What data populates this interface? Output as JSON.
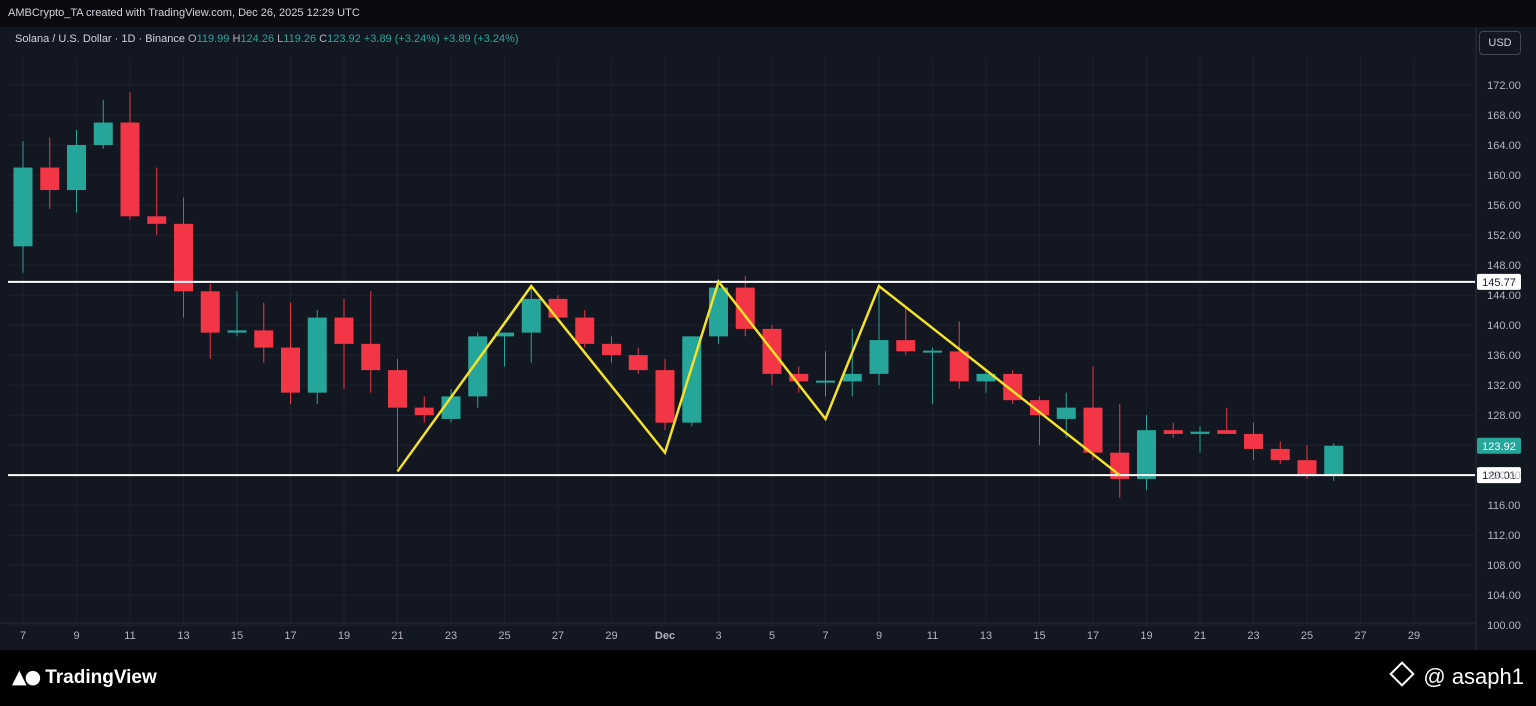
{
  "header": {
    "created_by": "AMBCrypto_TA created with TradingView.com, Dec 26, 2025 12:29 UTC"
  },
  "legend": {
    "symbol": "Solana / U.S. Dollar · 1D · Binance",
    "open_label": "O",
    "open": "119.99",
    "high_label": "H",
    "high": "124.26",
    "low_label": "L",
    "low": "119.26",
    "close_label": "C",
    "close": "123.92",
    "change": "+3.89 (+3.24%)",
    "change2": "+3.89 (+3.24%)"
  },
  "currency_button": "USD",
  "footer": {
    "logo_text": "TradingView",
    "watermark": "@ asaph1"
  },
  "colors": {
    "up": "#26a69a",
    "down": "#f23645",
    "background": "#131722",
    "pattern": "#f5e02a",
    "level": "#ffffff"
  },
  "chart_data": {
    "type": "candlestick",
    "x_tick_labels": [
      "7",
      "9",
      "11",
      "13",
      "15",
      "17",
      "19",
      "21",
      "23",
      "25",
      "27",
      "29",
      "Dec",
      "3",
      "5",
      "7",
      "9",
      "11",
      "13",
      "15",
      "17",
      "19",
      "21",
      "23",
      "25",
      "27",
      "29"
    ],
    "y_ticks": [
      "100.00",
      "104.00",
      "108.00",
      "112.00",
      "116.00",
      "120.00",
      "124.00",
      "128.00",
      "132.00",
      "136.00",
      "140.00",
      "144.00",
      "148.00",
      "152.00",
      "156.00",
      "160.00",
      "164.00",
      "168.00",
      "172.00"
    ],
    "ylim": [
      96.5,
      176
    ],
    "day_range": [
      0,
      52
    ],
    "candles": [
      {
        "o": 150.5,
        "h": 164.5,
        "l": 147.0,
        "c": 161.0
      },
      {
        "o": 161.0,
        "h": 165.0,
        "l": 155.5,
        "c": 158.0
      },
      {
        "o": 158.0,
        "h": 166.0,
        "l": 155.0,
        "c": 164.0
      },
      {
        "o": 164.0,
        "h": 170.0,
        "l": 163.5,
        "c": 167.0
      },
      {
        "o": 167.0,
        "h": 171.0,
        "l": 154.0,
        "c": 154.5
      },
      {
        "o": 154.5,
        "h": 161.0,
        "l": 152.0,
        "c": 153.5
      },
      {
        "o": 153.5,
        "h": 157.0,
        "l": 141.0,
        "c": 144.5
      },
      {
        "o": 144.5,
        "h": 145.5,
        "l": 135.5,
        "c": 139.0
      },
      {
        "o": 139.0,
        "h": 144.5,
        "l": 138.5,
        "c": 139.3
      },
      {
        "o": 139.3,
        "h": 143.0,
        "l": 135.0,
        "c": 137.0
      },
      {
        "o": 137.0,
        "h": 143.0,
        "l": 129.5,
        "c": 131.0
      },
      {
        "o": 131.0,
        "h": 142.0,
        "l": 129.5,
        "c": 141.0
      },
      {
        "o": 141.0,
        "h": 143.5,
        "l": 131.5,
        "c": 137.5
      },
      {
        "o": 137.5,
        "h": 144.5,
        "l": 131.0,
        "c": 134.0
      },
      {
        "o": 134.0,
        "h": 135.5,
        "l": 121.0,
        "c": 129.0
      },
      {
        "o": 129.0,
        "h": 130.5,
        "l": 127.0,
        "c": 128.0
      },
      {
        "o": 127.5,
        "h": 131.5,
        "l": 127.0,
        "c": 130.5
      },
      {
        "o": 130.5,
        "h": 139.0,
        "l": 129.0,
        "c": 138.5
      },
      {
        "o": 138.5,
        "h": 139.0,
        "l": 134.5,
        "c": 139.0
      },
      {
        "o": 139.0,
        "h": 145.0,
        "l": 135.0,
        "c": 143.5
      },
      {
        "o": 143.5,
        "h": 144.0,
        "l": 140.5,
        "c": 141.0
      },
      {
        "o": 141.0,
        "h": 142.0,
        "l": 137.0,
        "c": 137.5
      },
      {
        "o": 137.5,
        "h": 138.5,
        "l": 135.0,
        "c": 136.0
      },
      {
        "o": 136.0,
        "h": 137.0,
        "l": 133.5,
        "c": 134.0
      },
      {
        "o": 134.0,
        "h": 135.5,
        "l": 126.0,
        "c": 127.0
      },
      {
        "o": 127.0,
        "h": 138.5,
        "l": 126.5,
        "c": 138.5
      },
      {
        "o": 138.5,
        "h": 146.0,
        "l": 137.5,
        "c": 145.0
      },
      {
        "o": 145.0,
        "h": 146.5,
        "l": 138.5,
        "c": 139.5
      },
      {
        "o": 139.5,
        "h": 140.0,
        "l": 132.0,
        "c": 133.5
      },
      {
        "o": 133.5,
        "h": 134.5,
        "l": 131.0,
        "c": 132.5
      },
      {
        "o": 132.5,
        "h": 136.5,
        "l": 130.5,
        "c": 132.6
      },
      {
        "o": 132.5,
        "h": 139.5,
        "l": 130.5,
        "c": 133.5
      },
      {
        "o": 133.5,
        "h": 145.5,
        "l": 132.0,
        "c": 138.0
      },
      {
        "o": 138.0,
        "h": 142.5,
        "l": 136.0,
        "c": 136.5
      },
      {
        "o": 136.5,
        "h": 137.0,
        "l": 129.5,
        "c": 136.6
      },
      {
        "o": 136.5,
        "h": 140.5,
        "l": 131.5,
        "c": 132.5
      },
      {
        "o": 132.5,
        "h": 134.0,
        "l": 131.0,
        "c": 133.5
      },
      {
        "o": 133.5,
        "h": 134.0,
        "l": 129.5,
        "c": 130.0
      },
      {
        "o": 130.0,
        "h": 130.5,
        "l": 124.0,
        "c": 128.0
      },
      {
        "o": 127.5,
        "h": 131.0,
        "l": 125.0,
        "c": 129.0
      },
      {
        "o": 129.0,
        "h": 134.5,
        "l": 122.0,
        "c": 123.0
      },
      {
        "o": 123.0,
        "h": 129.5,
        "l": 117.0,
        "c": 119.5
      },
      {
        "o": 119.5,
        "h": 128.0,
        "l": 118.0,
        "c": 126.0
      },
      {
        "o": 126.0,
        "h": 127.0,
        "l": 125.0,
        "c": 125.5
      },
      {
        "o": 125.5,
        "h": 126.5,
        "l": 123.0,
        "c": 125.8
      },
      {
        "o": 126.0,
        "h": 129.0,
        "l": 125.5,
        "c": 125.5
      },
      {
        "o": 125.5,
        "h": 127.0,
        "l": 122.0,
        "c": 123.5
      },
      {
        "o": 123.5,
        "h": 124.5,
        "l": 121.5,
        "c": 122.0
      },
      {
        "o": 122.0,
        "h": 124.0,
        "l": 119.5,
        "c": 120.0
      },
      {
        "o": 119.99,
        "h": 124.26,
        "l": 119.26,
        "c": 123.92
      }
    ],
    "horizontal_levels": [
      {
        "price": 145.77,
        "label": "145.77"
      },
      {
        "price": 120.01,
        "label": "120.01"
      }
    ],
    "last_price": {
      "price": 123.92,
      "label": "123.92"
    },
    "pattern_line": [
      {
        "day": 14,
        "price": 120.5
      },
      {
        "day": 19,
        "price": 145.2
      },
      {
        "day": 24,
        "price": 123.0
      },
      {
        "day": 26,
        "price": 145.8
      },
      {
        "day": 30,
        "price": 127.5
      },
      {
        "day": 32,
        "price": 145.2
      },
      {
        "day": 41,
        "price": 120.0
      }
    ]
  }
}
